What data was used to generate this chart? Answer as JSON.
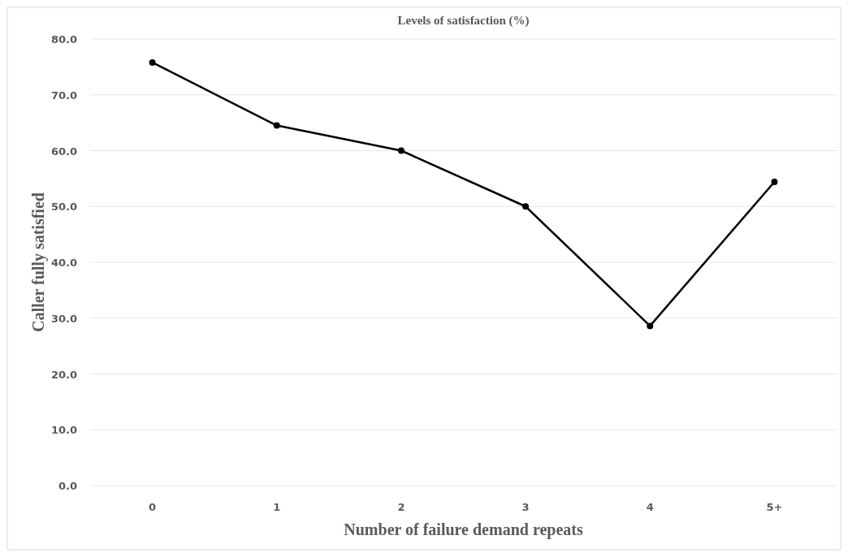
{
  "chart_data": {
    "type": "line",
    "title": "Levels of satisfaction  (%)",
    "xlabel": "Number of failure demand repeats",
    "ylabel": "Caller fully satisfied",
    "categories": [
      "0",
      "1",
      "2",
      "3",
      "4",
      "5+"
    ],
    "series": [
      {
        "color": "#000000",
        "values": [
          75.8,
          64.5,
          60.0,
          50.0,
          28.6,
          54.4
        ]
      }
    ],
    "ylim": [
      0,
      80
    ],
    "yticks": [
      {
        "value": 0,
        "label": "0.0"
      },
      {
        "value": 10,
        "label": "10.0"
      },
      {
        "value": 20,
        "label": "20.0"
      },
      {
        "value": 30,
        "label": "30.0"
      },
      {
        "value": 40,
        "label": "40.0"
      },
      {
        "value": 50,
        "label": "50.0"
      },
      {
        "value": 60,
        "label": "60.0"
      },
      {
        "value": 70,
        "label": "70.0"
      },
      {
        "value": 80,
        "label": "80.0"
      }
    ],
    "grid": "y",
    "marker": "circle",
    "line_style": "solid"
  }
}
